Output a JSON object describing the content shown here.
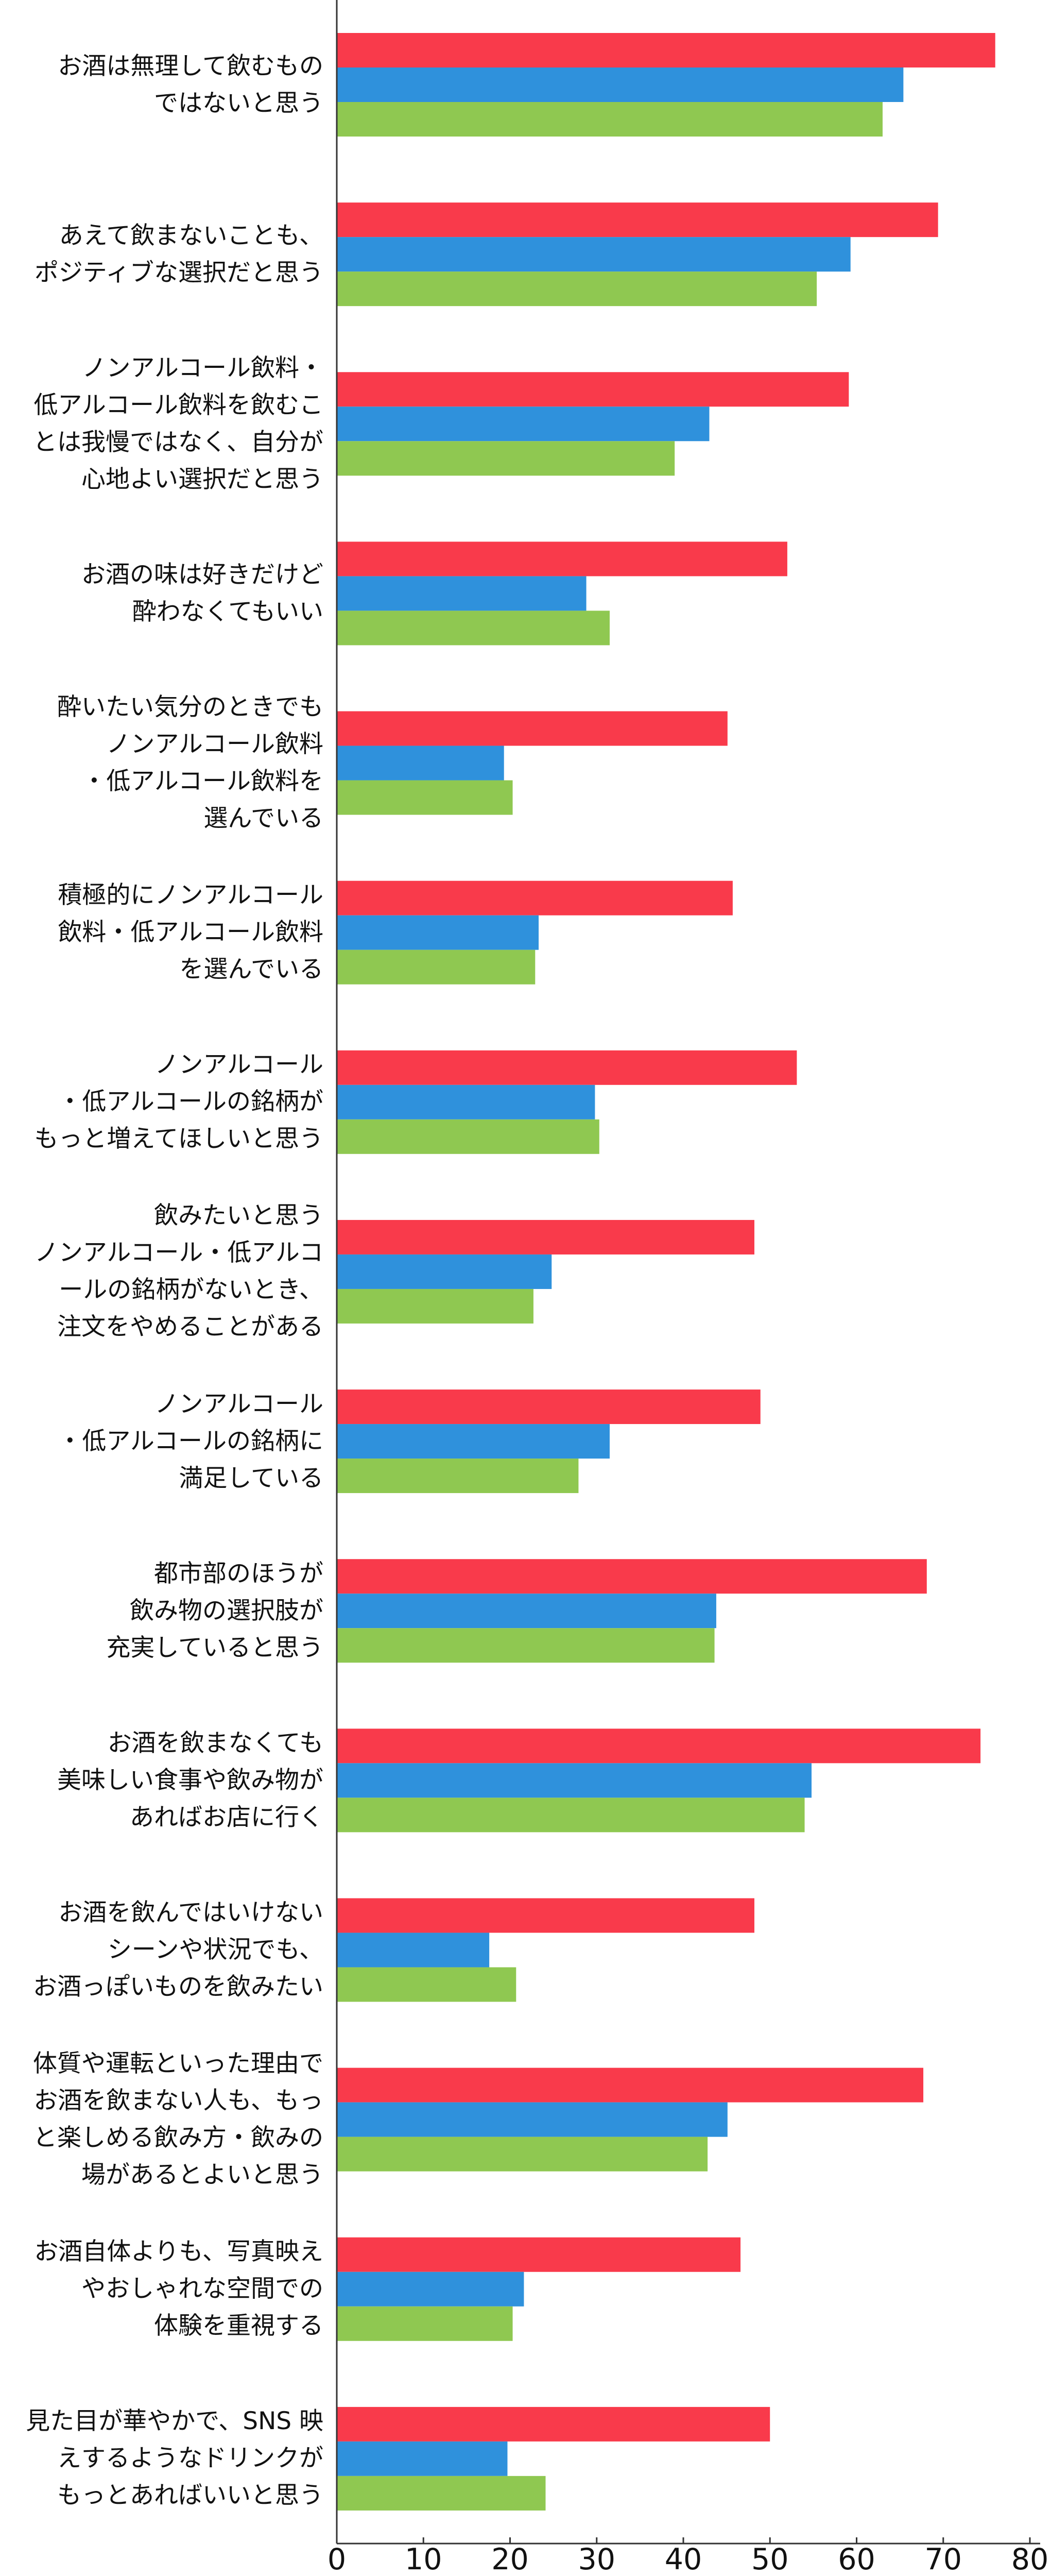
{
  "chart_data": {
    "type": "hbar",
    "categories": [
      "お酒は無理して飲むもの\nではないと思う",
      "あえて飲まないことも、\nポジティブな選択だと思う",
      "ノンアルコール飲料・\n低アルコール飲料を飲むこ\nとは我慢ではなく、自分が\n心地よい選択だと思う",
      "お酒の味は好きだけど\n酔わなくてもいい",
      "酔いたい気分のときでも\nノンアルコール飲料\n・低アルコール飲料を\n選んでいる",
      "積極的にノンアルコール\n飲料・低アルコール飲料\nを選んでいる",
      "ノンアルコール\n・低アルコールの銘柄が\nもっと増えてほしいと思う",
      "飲みたいと思う\nノンアルコール・低アルコ\nールの銘柄がないとき、\n注文をやめることがある",
      "ノンアルコール\n・低アルコールの銘柄に\n満足している",
      "都市部のほうが\n飲み物の選択肢が\n充実していると思う",
      "お酒を飲まなくても\n美味しい食事や飲み物が\nあればお店に行く",
      "お酒を飲んではいけない\nシーンや状況でも、\nお酒っぽいものを飲みたい",
      "体質や運転といった理由で\nお酒を飲まない人も、もっ\nと楽しめる飲み方・飲みの\n場があるとよいと思う",
      "お酒自体よりも、写真映え\nやおしゃれな空間での\n体験を重視する",
      "見た目が華やかで、SNS 映\nえするようなドリンクが\nもっとあればいいと思う"
    ],
    "series": [
      {
        "color": "#f93a4b",
        "values": [
          76,
          69.4,
          59.1,
          52,
          45.1,
          45.7,
          53.1,
          48.2,
          48.9,
          68.1,
          74.3,
          48.2,
          67.7,
          46.6,
          50
        ]
      },
      {
        "color": "#2f91dc",
        "values": [
          65.4,
          59.3,
          43,
          28.8,
          19.3,
          23.3,
          29.8,
          24.8,
          31.5,
          43.8,
          54.8,
          17.6,
          45.1,
          21.6,
          19.7
        ]
      },
      {
        "color": "#8fc851",
        "values": [
          63,
          55.4,
          39,
          31.5,
          20.3,
          22.9,
          30.3,
          22.7,
          27.9,
          43.6,
          54,
          20.7,
          42.8,
          20.3,
          24.1
        ]
      }
    ],
    "xlim": [
      0,
      80
    ],
    "xticks": [
      0,
      10,
      20,
      30,
      40,
      50,
      60,
      70,
      80
    ]
  }
}
